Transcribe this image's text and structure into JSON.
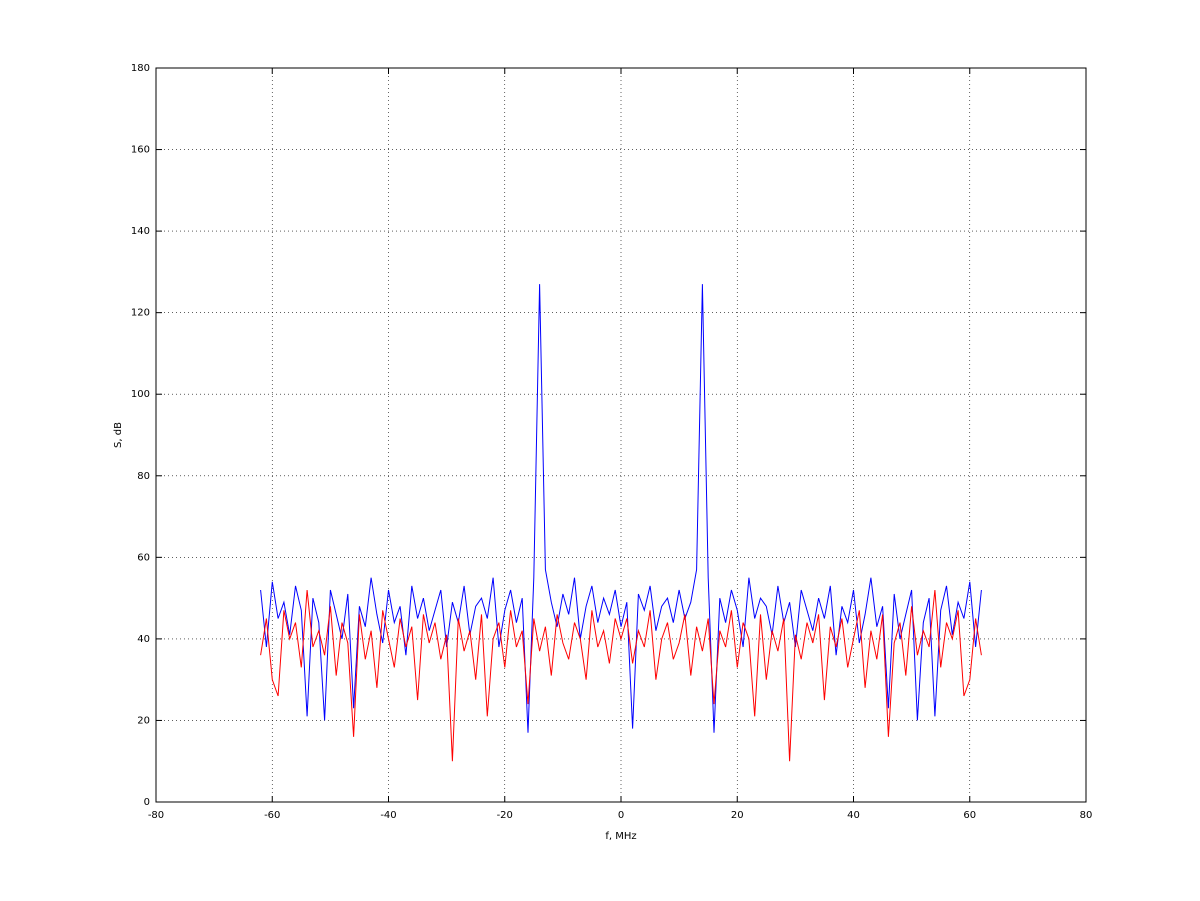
{
  "chart_data": {
    "type": "line",
    "xlabel": "f, MHz",
    "ylabel": "S, dB",
    "xlim": [
      -80,
      80
    ],
    "xticks": [
      -80,
      -60,
      -40,
      -20,
      0,
      20,
      40,
      60,
      80
    ],
    "ylim": [
      0,
      180
    ],
    "yticks": [
      0,
      20,
      40,
      60,
      80,
      100,
      120,
      140,
      160,
      180
    ],
    "grid": true,
    "x": [
      -62,
      -61,
      -60,
      -59,
      -58,
      -57,
      -56,
      -55,
      -54,
      -53,
      -52,
      -51,
      -50,
      -49,
      -48,
      -47,
      -46,
      -45,
      -44,
      -43,
      -42,
      -41,
      -40,
      -39,
      -38,
      -37,
      -36,
      -35,
      -34,
      -33,
      -32,
      -31,
      -30,
      -29,
      -28,
      -27,
      -26,
      -25,
      -24,
      -23,
      -22,
      -21,
      -20,
      -19,
      -18,
      -17,
      -16,
      -15,
      -14,
      -13,
      -12,
      -11,
      -10,
      -9,
      -8,
      -7,
      -6,
      -5,
      -4,
      -3,
      -2,
      -1,
      0,
      1,
      2,
      3,
      4,
      5,
      6,
      7,
      8,
      9,
      10,
      11,
      12,
      13,
      14,
      15,
      16,
      17,
      18,
      19,
      20,
      21,
      22,
      23,
      24,
      25,
      26,
      27,
      28,
      29,
      30,
      31,
      32,
      33,
      34,
      35,
      36,
      37,
      38,
      39,
      40,
      41,
      42,
      43,
      44,
      45,
      46,
      47,
      48,
      49,
      50,
      51,
      52,
      53,
      54,
      55,
      56,
      57,
      58,
      59,
      60,
      61,
      62
    ],
    "series": [
      {
        "name": "blue",
        "color": "#0000ff",
        "values": [
          52,
          38,
          54,
          45,
          49,
          41,
          53,
          47,
          21,
          50,
          44,
          20,
          52,
          46,
          40,
          51,
          23,
          48,
          43,
          55,
          46,
          39,
          52,
          44,
          48,
          36,
          53,
          45,
          50,
          42,
          47,
          52,
          38,
          49,
          44,
          53,
          41,
          48,
          50,
          45,
          55,
          38,
          47,
          52,
          44,
          50,
          17,
          55,
          127,
          57,
          49,
          43,
          51,
          46,
          55,
          40,
          48,
          53,
          44,
          50,
          46,
          52,
          43,
          49,
          18,
          51,
          47,
          53,
          42,
          48,
          50,
          44,
          52,
          45,
          49,
          57,
          127,
          55,
          17,
          50,
          44,
          52,
          47,
          38,
          55,
          45,
          50,
          48,
          41,
          53,
          44,
          49,
          38,
          52,
          47,
          42,
          50,
          45,
          53,
          36,
          48,
          44,
          52,
          39,
          46,
          55,
          43,
          48,
          23,
          51,
          40,
          46,
          52,
          20,
          44,
          50,
          21,
          47,
          53,
          41,
          49,
          45,
          54,
          38,
          52
        ]
      },
      {
        "name": "red",
        "color": "#ff0000",
        "values": [
          36,
          45,
          30,
          26,
          47,
          40,
          44,
          33,
          52,
          38,
          42,
          36,
          48,
          31,
          44,
          39,
          16,
          46,
          35,
          42,
          28,
          47,
          40,
          33,
          45,
          38,
          43,
          25,
          46,
          39,
          44,
          35,
          41,
          10,
          45,
          37,
          42,
          30,
          46,
          21,
          40,
          44,
          33,
          47,
          38,
          42,
          24,
          45,
          37,
          43,
          31,
          46,
          39,
          35,
          44,
          40,
          30,
          47,
          38,
          42,
          34,
          45,
          40,
          45,
          34,
          42,
          38,
          47,
          30,
          40,
          44,
          35,
          39,
          46,
          31,
          43,
          37,
          45,
          24,
          42,
          38,
          47,
          33,
          44,
          40,
          21,
          46,
          30,
          42,
          37,
          45,
          10,
          41,
          35,
          44,
          39,
          46,
          25,
          43,
          38,
          45,
          33,
          40,
          47,
          28,
          42,
          35,
          46,
          16,
          39,
          44,
          31,
          48,
          36,
          42,
          38,
          52,
          33,
          44,
          40,
          47,
          26,
          30,
          45,
          36
        ]
      }
    ]
  }
}
